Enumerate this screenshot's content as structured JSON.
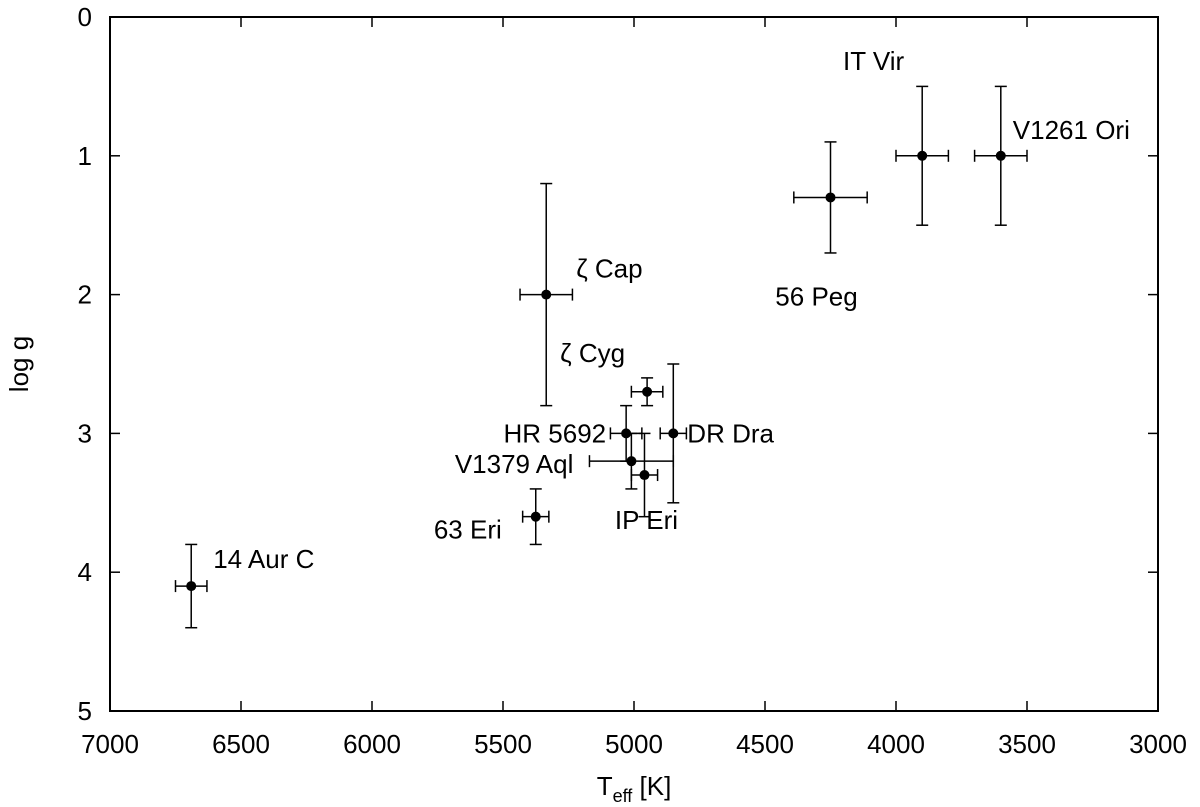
{
  "chart_data": {
    "type": "scatter",
    "title": "",
    "xlabel_main": "T",
    "xlabel_sub": "eff",
    "xlabel_unit": " [K]",
    "ylabel": "log g",
    "xlim": [
      7000,
      3000
    ],
    "ylim": [
      0,
      5
    ],
    "x_reversed": true,
    "y_reversed": true,
    "grid": false,
    "x_ticks": [
      7000,
      6500,
      6000,
      5500,
      5000,
      4500,
      4000,
      3500,
      3000
    ],
    "y_ticks": [
      0,
      1,
      2,
      3,
      4,
      5
    ],
    "points": [
      {
        "label": "14 Aur C",
        "teff": 6690,
        "teff_err": 60,
        "logg": 4.1,
        "logg_err": 0.3
      },
      {
        "label": "63 Eri",
        "teff": 5375,
        "teff_err": 50,
        "logg": 3.6,
        "logg_err": 0.2
      },
      {
        "label": "ζ Cap",
        "teff": 5335,
        "teff_err": 100,
        "logg": 2.0,
        "logg_err": 0.8
      },
      {
        "label": "ζ Cyg",
        "teff": 4950,
        "teff_err": 60,
        "logg": 2.7,
        "logg_err": 0.1
      },
      {
        "label": "HR 5692",
        "teff": 5030,
        "teff_err": 60,
        "logg": 3.0,
        "logg_err": 0.2
      },
      {
        "label": "DR Dra",
        "teff": 4850,
        "teff_err": 50,
        "logg": 3.0,
        "logg_err": 0.5
      },
      {
        "label": "V1379 Aql",
        "teff": 5010,
        "teff_err": 160,
        "logg": 3.2,
        "logg_err": 0.2
      },
      {
        "label": "IP Eri",
        "teff": 4960,
        "teff_err": 50,
        "logg": 3.3,
        "logg_err": 0.3
      },
      {
        "label": "56 Peg",
        "teff": 4250,
        "teff_err": 140,
        "logg": 1.3,
        "logg_err": 0.4
      },
      {
        "label": "IT Vir",
        "teff": 3900,
        "teff_err": 100,
        "logg": 1.0,
        "logg_err": 0.5
      },
      {
        "label": "V1261 Ori",
        "teff": 3600,
        "teff_err": 100,
        "logg": 1.0,
        "logg_err": 0.5
      }
    ]
  }
}
